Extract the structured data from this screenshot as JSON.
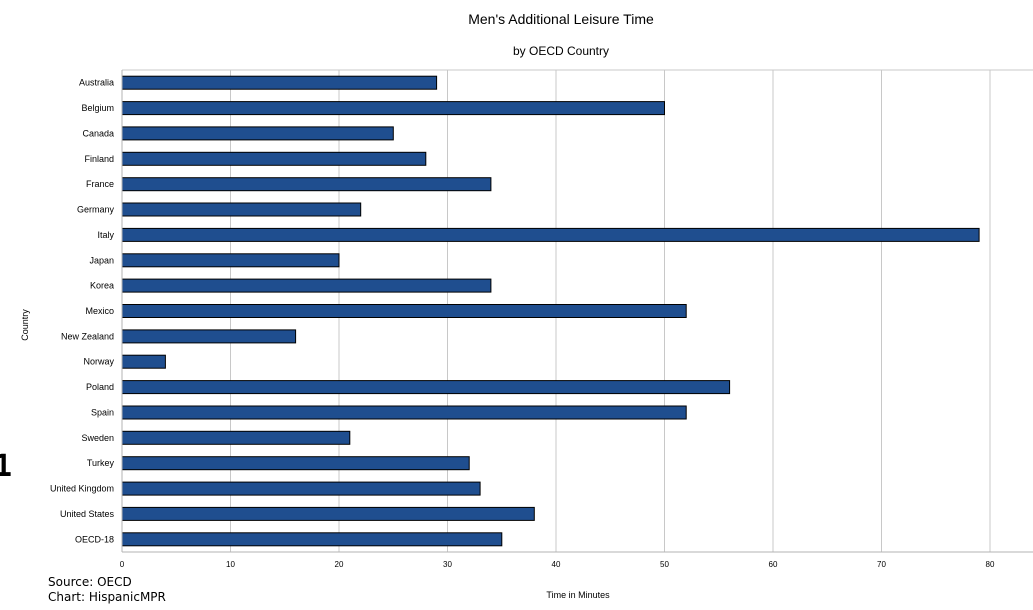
{
  "chart_data": {
    "type": "bar",
    "orientation": "horizontal",
    "title": "Men's Additional Leisure Time",
    "subtitle": "by OECD Country",
    "xlabel": "Time in Minutes",
    "ylabel": "Country",
    "categories": [
      "Australia",
      "Belgium",
      "Canada",
      "Finland",
      "France",
      "Germany",
      "Italy",
      "Japan",
      "Korea",
      "Mexico",
      "New Zealand",
      "Norway",
      "Poland",
      "Spain",
      "Sweden",
      "Turkey",
      "United Kingdom",
      "United States",
      "OECD-18"
    ],
    "values": [
      29,
      50,
      25,
      28,
      34,
      22,
      79,
      20,
      34,
      52,
      16,
      4,
      56,
      52,
      21,
      32,
      33,
      38,
      35
    ],
    "xlim": [
      0,
      84
    ],
    "xticks": [
      0,
      10,
      20,
      30,
      40,
      50,
      60,
      70,
      80
    ],
    "grid": "vertical",
    "bar_color": "#1f4e8f",
    "legend": "none"
  },
  "notes": {
    "source": "Source: OECD",
    "chart_credit": "Chart: HispanicMPR"
  },
  "edge_glyph": "1"
}
